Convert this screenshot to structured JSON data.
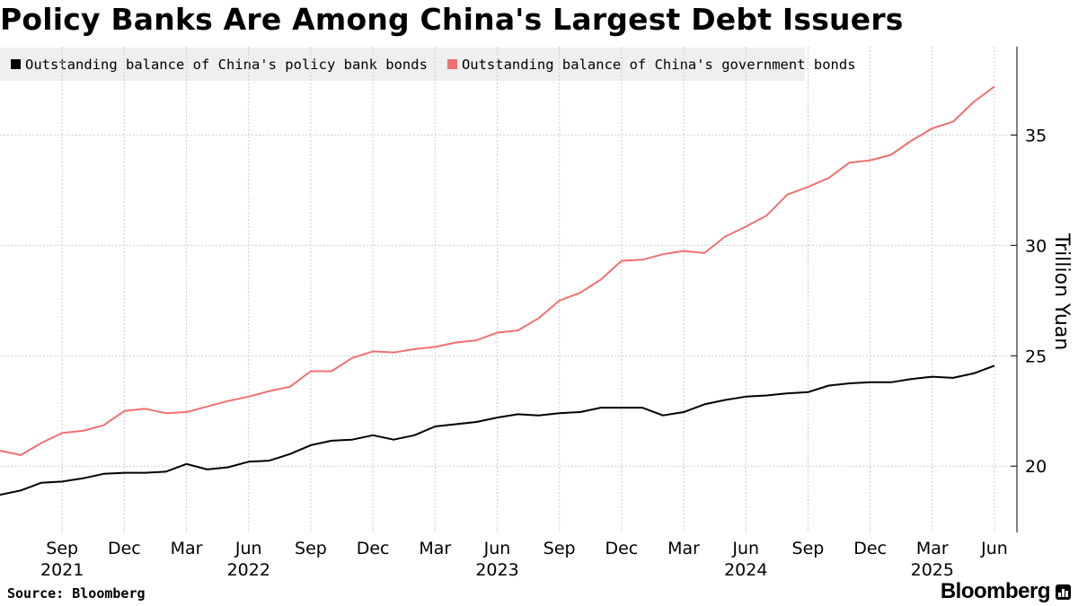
{
  "title": "Policy Banks Are Among China's Largest Debt Issuers",
  "source": "Source: Bloomberg",
  "brand": "Bloomberg",
  "brand_icon": "bloomberg-terminal-icon",
  "colors": {
    "policy": "#000000",
    "government": "#f07070",
    "grid": "#cccccc",
    "legend_bg": "#efefef"
  },
  "chart_data": {
    "type": "line",
    "ylabel": "Trillion Yuan",
    "ylim": [
      17.0,
      39.0
    ],
    "yticks": [
      20,
      25,
      30,
      35
    ],
    "y_axis_position": "right",
    "grid": true,
    "legend_placement": "top-left",
    "x": [
      "2021-06",
      "2021-07",
      "2021-08",
      "2021-09",
      "2021-10",
      "2021-11",
      "2021-12",
      "2022-01",
      "2022-02",
      "2022-03",
      "2022-04",
      "2022-05",
      "2022-06",
      "2022-07",
      "2022-08",
      "2022-09",
      "2022-10",
      "2022-11",
      "2022-12",
      "2023-01",
      "2023-02",
      "2023-03",
      "2023-04",
      "2023-05",
      "2023-06",
      "2023-07",
      "2023-08",
      "2023-09",
      "2023-10",
      "2023-11",
      "2023-12",
      "2024-01",
      "2024-02",
      "2024-03",
      "2024-04",
      "2024-05",
      "2024-06",
      "2024-07",
      "2024-08",
      "2024-09",
      "2024-10",
      "2024-11",
      "2024-12",
      "2025-01",
      "2025-02",
      "2025-03",
      "2025-04",
      "2025-05",
      "2025-06"
    ],
    "x_ticks": [
      {
        "month": "Sep",
        "year": "2021",
        "x": "2021-09"
      },
      {
        "month": "Dec",
        "year": "",
        "x": "2021-12"
      },
      {
        "month": "Mar",
        "year": "",
        "x": "2022-03"
      },
      {
        "month": "Jun",
        "year": "2022",
        "x": "2022-06"
      },
      {
        "month": "Sep",
        "year": "",
        "x": "2022-09"
      },
      {
        "month": "Dec",
        "year": "",
        "x": "2022-12"
      },
      {
        "month": "Mar",
        "year": "",
        "x": "2023-03"
      },
      {
        "month": "Jun",
        "year": "2023",
        "x": "2023-06"
      },
      {
        "month": "Sep",
        "year": "",
        "x": "2023-09"
      },
      {
        "month": "Dec",
        "year": "",
        "x": "2023-12"
      },
      {
        "month": "Mar",
        "year": "",
        "x": "2024-03"
      },
      {
        "month": "Jun",
        "year": "2024",
        "x": "2024-06"
      },
      {
        "month": "Sep",
        "year": "",
        "x": "2024-09"
      },
      {
        "month": "Dec",
        "year": "",
        "x": "2024-12"
      },
      {
        "month": "Mar",
        "year": "2025",
        "x": "2025-03"
      },
      {
        "month": "Jun",
        "year": "",
        "x": "2025-06"
      }
    ],
    "series": [
      {
        "name": "Outstanding balance of China's policy bank bonds",
        "key": "policy",
        "values": [
          18.7,
          18.9,
          19.25,
          19.3,
          19.45,
          19.65,
          19.7,
          19.7,
          19.75,
          20.1,
          19.85,
          19.95,
          20.2,
          20.25,
          20.55,
          20.95,
          21.15,
          21.2,
          21.4,
          21.2,
          21.4,
          21.8,
          21.9,
          22.0,
          22.2,
          22.35,
          22.3,
          22.4,
          22.45,
          22.65,
          22.65,
          22.65,
          22.3,
          22.45,
          22.8,
          23.0,
          23.15,
          23.2,
          23.3,
          23.35,
          23.65,
          23.75,
          23.8,
          23.8,
          23.95,
          24.05,
          24.0,
          24.2,
          24.55
        ]
      },
      {
        "name": "Outstanding balance of China's government bonds",
        "key": "government",
        "values": [
          20.7,
          20.5,
          21.05,
          21.5,
          21.6,
          21.85,
          22.5,
          22.6,
          22.4,
          22.45,
          22.7,
          22.95,
          23.15,
          23.4,
          23.6,
          24.3,
          24.3,
          24.9,
          25.2,
          25.15,
          25.3,
          25.4,
          25.6,
          25.7,
          26.05,
          26.15,
          26.7,
          27.5,
          27.85,
          28.45,
          29.3,
          29.35,
          29.6,
          29.75,
          29.65,
          30.4,
          30.85,
          31.35,
          32.3,
          32.65,
          33.05,
          33.75,
          33.85,
          34.1,
          34.75,
          35.3,
          35.6,
          36.5,
          37.2
        ]
      }
    ]
  }
}
